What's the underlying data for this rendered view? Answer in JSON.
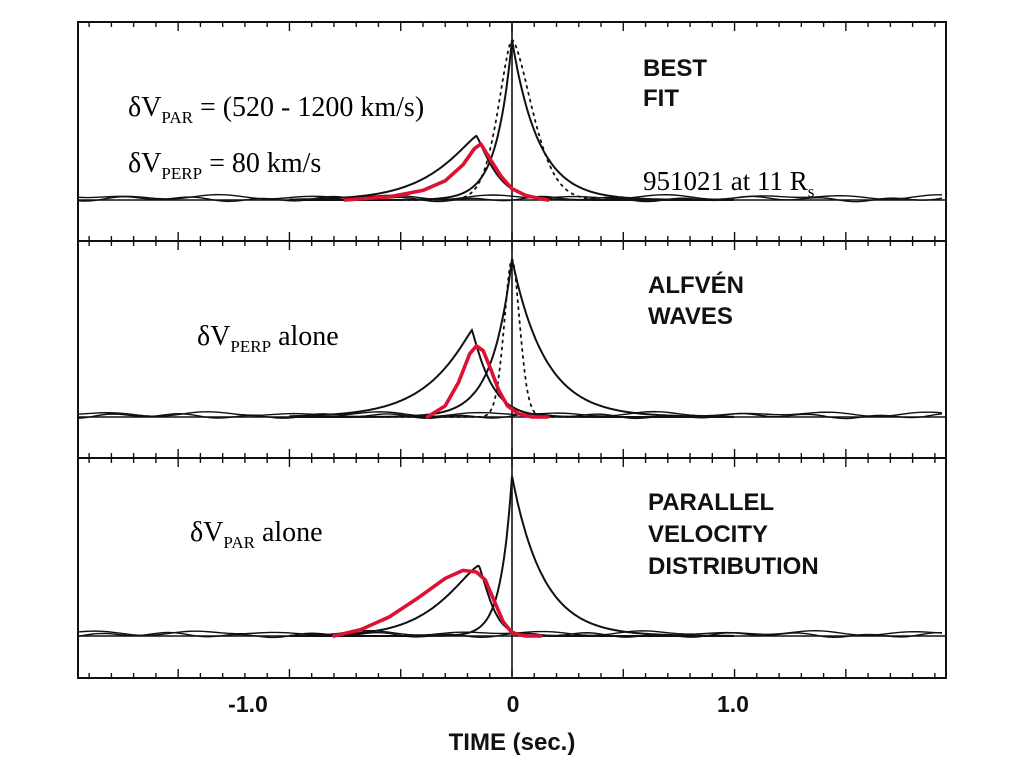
{
  "chart_data": {
    "type": "line",
    "xlabel": "TIME (sec.)",
    "xlim": [
      -1.95,
      1.95
    ],
    "xticks": [
      {
        "value": -1.0,
        "label": "-1.0"
      },
      {
        "value": 0.0,
        "label": "0"
      },
      {
        "value": 1.0,
        "label": "1.0"
      }
    ],
    "grid": false,
    "panels": [
      {
        "id": "best-fit",
        "title_lines": [
          "BEST",
          "FIT"
        ],
        "annotations": [
          {
            "base": "δV",
            "sub": "PAR",
            "rest": " = (520 - 1200 km/s)"
          },
          {
            "base": "δV",
            "sub": "PERP",
            "rest": " = 80 km/s"
          },
          {
            "base": "951021 at 11 R",
            "sub": "s",
            "rest": ""
          }
        ],
        "series": [
          {
            "style": "observed",
            "shape": "profile",
            "center": 0.0,
            "peak": 1.0,
            "width_left": 0.07,
            "width_right": 0.12,
            "power": 1.0
          },
          {
            "style": "dotted",
            "shape": "profile",
            "center": 0.0,
            "peak": 1.0,
            "width_left": 0.09,
            "width_right": 0.13,
            "power": 1.6
          },
          {
            "style": "observed",
            "shape": "profile",
            "center": -0.16,
            "peak": 0.4,
            "width_left": 0.22,
            "width_right": 0.1,
            "power": 1.2
          },
          {
            "style": "highlight",
            "x": [
              -0.75,
              -0.55,
              -0.4,
              -0.3,
              -0.22,
              -0.17,
              -0.14,
              -0.1,
              -0.05,
              0.0,
              0.06,
              0.12,
              0.16
            ],
            "y": [
              0.0,
              0.02,
              0.06,
              0.12,
              0.22,
              0.32,
              0.35,
              0.26,
              0.15,
              0.07,
              0.03,
              0.01,
              0.0
            ]
          }
        ]
      },
      {
        "id": "alfven",
        "title_lines": [
          "ALFVÉN",
          "WAVES"
        ],
        "annotations": [
          {
            "base": "δV",
            "sub": "PERP",
            "rest": " alone"
          }
        ],
        "series": [
          {
            "style": "observed",
            "shape": "profile",
            "center": 0.0,
            "peak": 1.0,
            "width_left": 0.09,
            "width_right": 0.15,
            "power": 1.0
          },
          {
            "style": "dotted",
            "shape": "profile",
            "center": 0.0,
            "peak": 1.0,
            "width_left": 0.05,
            "width_right": 0.05,
            "power": 1.8
          },
          {
            "style": "observed",
            "shape": "profile",
            "center": -0.18,
            "peak": 0.55,
            "width_left": 0.2,
            "width_right": 0.09,
            "power": 1.1
          },
          {
            "style": "highlight",
            "x": [
              -0.38,
              -0.3,
              -0.24,
              -0.19,
              -0.16,
              -0.13,
              -0.1,
              -0.06,
              -0.02,
              0.03,
              0.09,
              0.16
            ],
            "y": [
              0.0,
              0.07,
              0.22,
              0.4,
              0.45,
              0.42,
              0.32,
              0.17,
              0.07,
              0.02,
              0.0,
              0.0
            ]
          }
        ]
      },
      {
        "id": "parallel",
        "title_lines": [
          "PARALLEL",
          "VELOCITY",
          "DISTRIBUTION"
        ],
        "annotations": [
          {
            "base": "δV",
            "sub": "PAR",
            "rest": " alone"
          }
        ],
        "series": [
          {
            "style": "observed",
            "shape": "profile",
            "center": 0.0,
            "peak": 1.0,
            "width_left": 0.05,
            "width_right": 0.14,
            "power": 1.0
          },
          {
            "style": "observed",
            "shape": "profile",
            "center": -0.15,
            "peak": 0.44,
            "width_left": 0.22,
            "width_right": 0.07,
            "power": 1.3
          },
          {
            "style": "highlight",
            "x": [
              -0.8,
              -0.68,
              -0.55,
              -0.42,
              -0.3,
              -0.22,
              -0.16,
              -0.12,
              -0.08,
              -0.04,
              0.0,
              0.06,
              0.13
            ],
            "y": [
              0.0,
              0.04,
              0.12,
              0.24,
              0.36,
              0.41,
              0.4,
              0.35,
              0.22,
              0.09,
              0.02,
              0.0,
              0.0
            ]
          }
        ]
      }
    ]
  }
}
